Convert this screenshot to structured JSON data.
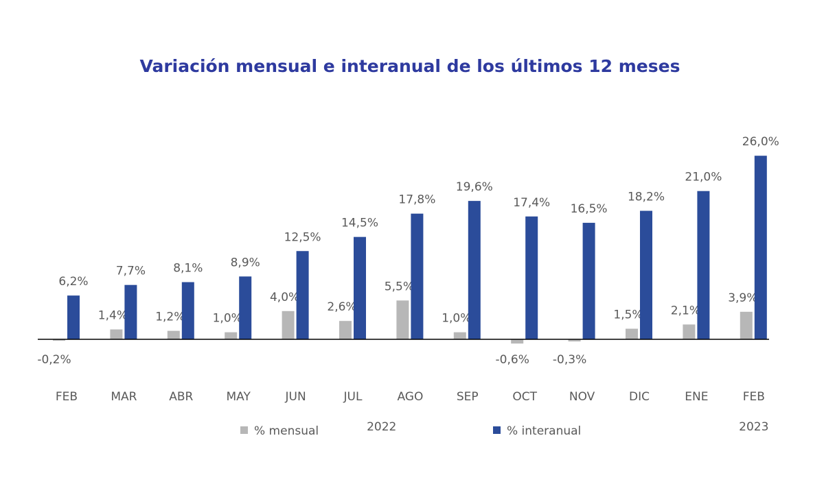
{
  "chart_data": {
    "type": "bar",
    "title": "Variación mensual e interanual de los últimos 12 meses",
    "categories": [
      "FEB",
      "MAR",
      "ABR",
      "MAY",
      "JUN",
      "JUL",
      "AGO",
      "SEP",
      "OCT",
      "NOV",
      "DIC",
      "ENE",
      "FEB"
    ],
    "years": [
      "2022",
      "2023"
    ],
    "series": [
      {
        "name": "% mensual",
        "color": "#b7b7b7",
        "values": [
          -0.2,
          1.4,
          1.2,
          1.0,
          4.0,
          2.6,
          5.5,
          1.0,
          -0.6,
          -0.3,
          1.5,
          2.1,
          3.9
        ],
        "value_labels": [
          "-0,2%",
          "1,4%",
          "1,2%",
          "1,0%",
          "4,0%",
          "2,6%",
          "5,5%",
          "1,0%",
          "-0,6%",
          "-0,3%",
          "1,5%",
          "2,1%",
          "3,9%"
        ]
      },
      {
        "name": "% interanual",
        "color": "#2b4c9a",
        "values": [
          6.2,
          7.7,
          8.1,
          8.9,
          12.5,
          14.5,
          17.8,
          19.6,
          17.4,
          16.5,
          18.2,
          21.0,
          26.0
        ],
        "value_labels": [
          "6,2%",
          "7,7%",
          "8,1%",
          "8,9%",
          "12,5%",
          "14,5%",
          "17,8%",
          "19,6%",
          "17,4%",
          "16,5%",
          "18,2%",
          "21,0%",
          "26,0%"
        ]
      }
    ]
  }
}
